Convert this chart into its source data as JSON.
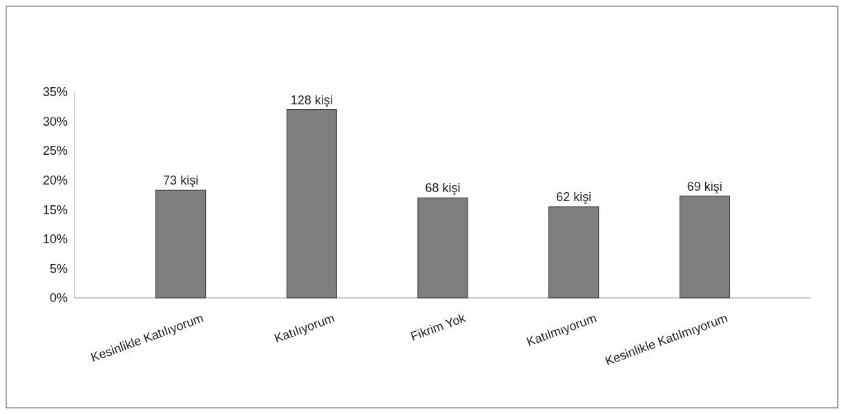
{
  "chart_data": {
    "type": "bar",
    "categories": [
      "Kesinlikle Katılıyorum",
      "Katılıyorum",
      "Fikrim Yok",
      "Katılmıyorum",
      "Kesinlikle Katılmıyorum"
    ],
    "values": [
      18.3,
      32,
      17,
      15.5,
      17.3
    ],
    "annotations": [
      {
        "text": "73 kişi",
        "x": "Kesinlikle Katılıyorum",
        "y": 18.3
      },
      {
        "text": "128 kişi",
        "x": "Katılıyorum",
        "y": 32
      },
      {
        "text": "68 kişi",
        "x": "Fikrim Yok",
        "y": 17
      },
      {
        "text": "62 kişi",
        "x": "Katılmıyorum",
        "y": 15.5
      },
      {
        "text": "69 kişi",
        "x": "Kesinlikle Katılmıyorum",
        "y": 17.3
      }
    ],
    "color": "#7f7f7f",
    "ylim": [
      0,
      35
    ],
    "yticks": [
      {
        "value": 0,
        "label": "0%"
      },
      {
        "value": 5,
        "label": "5%"
      },
      {
        "value": 10,
        "label": "10%"
      },
      {
        "value": 15,
        "label": "15%"
      },
      {
        "value": 20,
        "label": "20%"
      },
      {
        "value": 25,
        "label": "25%"
      },
      {
        "value": 30,
        "label": "30%"
      },
      {
        "value": 35,
        "label": "35%"
      }
    ],
    "grid": false
  }
}
